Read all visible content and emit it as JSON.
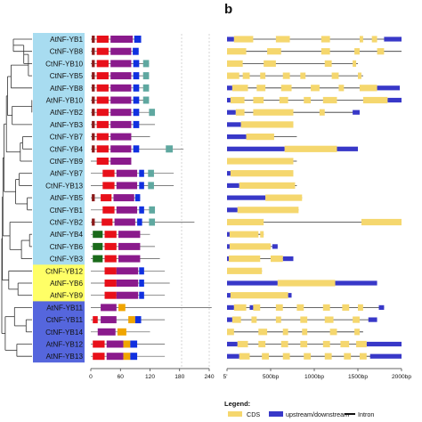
{
  "panel_label": "b",
  "colors": {
    "group1_bg": "#a8dcf0",
    "group2_bg": "#ffff66",
    "group3_bg": "#5566dd",
    "motif_darkred": "#8b1a1a",
    "motif_red": "#e8101a",
    "motif_purple": "#8a1a8c",
    "motif_blue": "#1030e0",
    "motif_teal": "#5fa8a0",
    "motif_green": "#1a6a1a",
    "motif_orange": "#f0a500",
    "cds": "#f5d76e",
    "utr": "#3838c8",
    "intron": "#333333"
  },
  "genes": [
    {
      "name": "AtNF-YB1",
      "group": 1
    },
    {
      "name": "CtNF-YB8",
      "group": 1
    },
    {
      "name": "CtNF-YB10",
      "group": 1
    },
    {
      "name": "CtNF-YB5",
      "group": 1
    },
    {
      "name": "AtNF-YB8",
      "group": 1
    },
    {
      "name": "AtNF-YB10",
      "group": 1
    },
    {
      "name": "AtNF-YB2",
      "group": 1
    },
    {
      "name": "AtNF-YB3",
      "group": 1
    },
    {
      "name": "CtNF-YB7",
      "group": 1
    },
    {
      "name": "CtNF-YB4",
      "group": 1
    },
    {
      "name": "CtNF-YB9",
      "group": 1
    },
    {
      "name": "AtNF-YB7",
      "group": 1
    },
    {
      "name": "CtNF-YB13",
      "group": 1
    },
    {
      "name": "AtNF-YB5",
      "group": 1
    },
    {
      "name": "CtNF-YB1",
      "group": 1
    },
    {
      "name": "CtNF-YB2",
      "group": 1
    },
    {
      "name": "AtNF-YB4",
      "group": 1
    },
    {
      "name": "CtNF-YB6",
      "group": 1
    },
    {
      "name": "CtNF-YB3",
      "group": 1
    },
    {
      "name": "CtNF-YB12",
      "group": 2
    },
    {
      "name": "AtNF-YB6",
      "group": 2
    },
    {
      "name": "AtNF-YB9",
      "group": 2
    },
    {
      "name": "AtNF-YB11",
      "group": 3
    },
    {
      "name": "CtNF-YB11",
      "group": 3
    },
    {
      "name": "CtNF-YB14",
      "group": 3
    },
    {
      "name": "AtNF-YB12",
      "group": 3
    },
    {
      "name": "AtNF-YB13",
      "group": 3
    }
  ],
  "motif_axis": {
    "ticks": [
      "0",
      "60",
      "120",
      "180",
      "240"
    ],
    "max": 240
  },
  "structure_axis": {
    "ticks": [
      "5'",
      "500bp",
      "1000bp",
      "1500bp",
      "2000bp"
    ],
    "max": 2000
  },
  "legend": {
    "title": "Legend:",
    "cds": "CDS",
    "utr": "upstream/downstream",
    "intron": "Intron"
  },
  "motifs": [
    [
      [
        "darkred",
        2,
        8
      ],
      [
        "red",
        12,
        36
      ],
      [
        "purple",
        40,
        85
      ],
      [
        "blue",
        88,
        102
      ]
    ],
    [
      [
        "darkred",
        2,
        8
      ],
      [
        "red",
        12,
        36
      ],
      [
        "purple",
        40,
        82
      ],
      [
        "blue",
        85,
        97
      ]
    ],
    [
      [
        "darkred",
        2,
        8
      ],
      [
        "red",
        12,
        36
      ],
      [
        "purple",
        40,
        82
      ],
      [
        "blue",
        86,
        98
      ],
      [
        "teal",
        106,
        118
      ]
    ],
    [
      [
        "darkred",
        2,
        8
      ],
      [
        "red",
        12,
        36
      ],
      [
        "purple",
        40,
        82
      ],
      [
        "blue",
        86,
        98
      ],
      [
        "teal",
        106,
        118
      ]
    ],
    [
      [
        "darkred",
        2,
        8
      ],
      [
        "red",
        12,
        36
      ],
      [
        "purple",
        40,
        82
      ],
      [
        "blue",
        86,
        98
      ],
      [
        "teal",
        106,
        118
      ]
    ],
    [
      [
        "darkred",
        2,
        8
      ],
      [
        "red",
        12,
        36
      ],
      [
        "purple",
        40,
        82
      ],
      [
        "blue",
        86,
        98
      ],
      [
        "teal",
        106,
        118
      ]
    ],
    [
      [
        "darkred",
        2,
        8
      ],
      [
        "red",
        12,
        36
      ],
      [
        "purple",
        40,
        82
      ],
      [
        "blue",
        86,
        98
      ],
      [
        "teal",
        118,
        130
      ]
    ],
    [
      [
        "darkred",
        2,
        8
      ],
      [
        "red",
        12,
        36
      ],
      [
        "purple",
        40,
        82
      ],
      [
        "blue",
        86,
        98
      ]
    ],
    [
      [
        "darkred",
        2,
        8
      ],
      [
        "red",
        12,
        36
      ],
      [
        "purple",
        40,
        82
      ]
    ],
    [
      [
        "darkred",
        2,
        8
      ],
      [
        "red",
        12,
        36
      ],
      [
        "purple",
        40,
        82
      ],
      [
        "blue",
        86,
        98
      ],
      [
        "teal",
        152,
        166
      ]
    ],
    [
      [
        "red",
        12,
        36
      ],
      [
        "purple",
        40,
        82
      ]
    ],
    [
      [
        "red",
        24,
        48
      ],
      [
        "purple",
        52,
        94
      ],
      [
        "blue",
        98,
        108
      ],
      [
        "teal",
        116,
        128
      ]
    ],
    [
      [
        "red",
        24,
        48
      ],
      [
        "purple",
        52,
        94
      ],
      [
        "blue",
        98,
        108
      ],
      [
        "teal",
        116,
        128
      ]
    ],
    [
      [
        "darkred",
        2,
        8
      ],
      [
        "red",
        20,
        42
      ],
      [
        "purple",
        46,
        88
      ],
      [
        "blue",
        90,
        100
      ]
    ],
    [
      [
        "red",
        24,
        48
      ],
      [
        "purple",
        52,
        94
      ],
      [
        "blue",
        98,
        108
      ],
      [
        "teal",
        118,
        130
      ]
    ],
    [
      [
        "darkred",
        2,
        8
      ],
      [
        "red",
        22,
        44
      ],
      [
        "purple",
        48,
        90
      ],
      [
        "blue",
        94,
        104
      ],
      [
        "teal",
        118,
        130
      ]
    ],
    [
      [
        "green",
        4,
        24
      ],
      [
        "red",
        28,
        52
      ],
      [
        "purple",
        56,
        100
      ]
    ],
    [
      [
        "green",
        4,
        24
      ],
      [
        "red",
        28,
        52
      ],
      [
        "purple",
        56,
        100
      ]
    ],
    [
      [
        "green",
        4,
        24
      ],
      [
        "red",
        28,
        52
      ],
      [
        "purple",
        56,
        100
      ]
    ],
    [
      [
        "red",
        28,
        52
      ],
      [
        "purple",
        52,
        96
      ],
      [
        "blue",
        98,
        108
      ]
    ],
    [
      [
        "red",
        28,
        52
      ],
      [
        "purple",
        52,
        96
      ],
      [
        "blue",
        98,
        108
      ]
    ],
    [
      [
        "red",
        28,
        52
      ],
      [
        "purple",
        52,
        96
      ],
      [
        "blue",
        98,
        108
      ]
    ],
    [
      [
        "purple",
        20,
        52
      ],
      [
        "orange",
        56,
        70
      ]
    ],
    [
      [
        "red",
        4,
        14
      ],
      [
        "purple",
        20,
        52
      ],
      [
        "orange",
        76,
        90
      ],
      [
        "blue",
        90,
        102
      ]
    ],
    [
      [
        "purple",
        14,
        50
      ],
      [
        "orange",
        54,
        72
      ]
    ],
    [
      [
        "red",
        4,
        28
      ],
      [
        "purple",
        32,
        66
      ],
      [
        "orange",
        66,
        80
      ],
      [
        "blue",
        80,
        94
      ]
    ],
    [
      [
        "red",
        4,
        28
      ],
      [
        "purple",
        32,
        66
      ],
      [
        "orange",
        66,
        80
      ],
      [
        "blue",
        80,
        94
      ]
    ]
  ],
  "motif_lines": [
    102,
    97,
    118,
    118,
    118,
    118,
    130,
    130,
    120,
    188,
    82,
    168,
    168,
    100,
    130,
    210,
    120,
    130,
    140,
    150,
    160,
    150,
    245,
    150,
    120,
    150,
    150
  ],
  "structures": [
    {
      "len": 2000,
      "utr": [
        [
          0,
          80
        ],
        [
          1800,
          2000
        ]
      ],
      "cds": [
        [
          80,
          300
        ],
        [
          560,
          720
        ],
        [
          1080,
          1180
        ],
        [
          1520,
          1560
        ],
        [
          1660,
          1720
        ]
      ]
    },
    {
      "len": 2000,
      "utr": [],
      "cds": [
        [
          0,
          220
        ],
        [
          460,
          620
        ],
        [
          1080,
          1180
        ],
        [
          1460,
          1520
        ],
        [
          1720,
          1800
        ]
      ]
    },
    {
      "len": 1500,
      "utr": [],
      "cds": [
        [
          0,
          180
        ],
        [
          420,
          560
        ],
        [
          1120,
          1200
        ],
        [
          1440,
          1480
        ]
      ]
    },
    {
      "len": 1560,
      "utr": [],
      "cds": [
        [
          0,
          140
        ],
        [
          180,
          260
        ],
        [
          380,
          440
        ],
        [
          640,
          720
        ],
        [
          840,
          900
        ],
        [
          1200,
          1280
        ],
        [
          1500,
          1540
        ]
      ]
    },
    {
      "len": 1980,
      "utr": [
        [
          0,
          60
        ],
        [
          1720,
          1980
        ]
      ],
      "cds": [
        [
          60,
          240
        ],
        [
          340,
          440
        ],
        [
          620,
          740
        ],
        [
          960,
          1060
        ],
        [
          1280,
          1340
        ],
        [
          1520,
          1720
        ]
      ]
    },
    {
      "len": 2000,
      "utr": [
        [
          0,
          40
        ],
        [
          1840,
          2000
        ]
      ],
      "cds": [
        [
          40,
          200
        ],
        [
          300,
          420
        ],
        [
          600,
          700
        ],
        [
          880,
          960
        ],
        [
          1100,
          1260
        ],
        [
          1560,
          1840
        ]
      ]
    },
    {
      "len": 1520,
      "utr": [
        [
          0,
          100
        ],
        [
          1440,
          1520
        ]
      ],
      "cds": [
        [
          100,
          200
        ],
        [
          300,
          760
        ],
        [
          1060,
          1120
        ]
      ]
    },
    {
      "len": 760,
      "utr": [
        [
          0,
          160
        ]
      ],
      "cds": [
        [
          160,
          760
        ]
      ]
    },
    {
      "len": 800,
      "utr": [
        [
          0,
          220
        ]
      ],
      "cds": [
        [
          220,
          540
        ]
      ]
    },
    {
      "len": 1500,
      "utr": [
        [
          0,
          660
        ],
        [
          1260,
          1500
        ]
      ],
      "cds": [
        [
          660,
          1260
        ]
      ]
    },
    {
      "len": 800,
      "utr": [],
      "cds": [
        [
          0,
          760
        ]
      ]
    },
    {
      "len": 760,
      "utr": [
        [
          0,
          40
        ]
      ],
      "cds": [
        [
          40,
          760
        ]
      ]
    },
    {
      "len": 800,
      "utr": [
        [
          0,
          140
        ]
      ],
      "cds": [
        [
          140,
          780
        ]
      ]
    },
    {
      "len": 860,
      "utr": [
        [
          0,
          440
        ]
      ],
      "cds": [
        [
          440,
          860
        ]
      ]
    },
    {
      "len": 820,
      "utr": [
        [
          0,
          120
        ]
      ],
      "cds": [
        [
          120,
          820
        ]
      ]
    },
    {
      "len": 2000,
      "utr": [],
      "cds": [
        [
          0,
          420
        ],
        [
          1540,
          2000
        ]
      ]
    },
    {
      "len": 420,
      "utr": [
        [
          0,
          30
        ]
      ],
      "cds": [
        [
          30,
          360
        ],
        [
          380,
          420
        ]
      ]
    },
    {
      "len": 580,
      "utr": [
        [
          0,
          30
        ],
        [
          520,
          580
        ]
      ],
      "cds": [
        [
          30,
          500
        ]
      ]
    },
    {
      "len": 760,
      "utr": [
        [
          0,
          20
        ],
        [
          640,
          760
        ]
      ],
      "cds": [
        [
          20,
          380
        ],
        [
          500,
          640
        ]
      ]
    },
    {
      "len": 400,
      "utr": [],
      "cds": [
        [
          0,
          400
        ]
      ]
    },
    {
      "len": 1720,
      "utr": [
        [
          0,
          580
        ],
        [
          1240,
          1720
        ]
      ],
      "cds": [
        [
          580,
          1240
        ]
      ]
    },
    {
      "len": 740,
      "utr": [
        [
          0,
          40
        ],
        [
          700,
          740
        ]
      ],
      "cds": [
        [
          40,
          700
        ]
      ]
    },
    {
      "len": 1800,
      "utr": [
        [
          0,
          80
        ],
        [
          260,
          300
        ],
        [
          1740,
          1800
        ]
      ],
      "cds": [
        [
          80,
          220
        ],
        [
          300,
          380
        ],
        [
          560,
          640
        ],
        [
          800,
          880
        ],
        [
          1100,
          1180
        ],
        [
          1320,
          1400
        ],
        [
          1500,
          1560
        ]
      ]
    },
    {
      "len": 1720,
      "utr": [
        [
          0,
          60
        ],
        [
          1620,
          1720
        ]
      ],
      "cds": [
        [
          60,
          160
        ],
        [
          280,
          340
        ],
        [
          560,
          620
        ],
        [
          840,
          920
        ],
        [
          1120,
          1220
        ],
        [
          1440,
          1520
        ]
      ]
    },
    {
      "len": 1560,
      "utr": [],
      "cds": [
        [
          0,
          80
        ],
        [
          360,
          460
        ],
        [
          640,
          700
        ],
        [
          860,
          920
        ],
        [
          1180,
          1260
        ],
        [
          1460,
          1520
        ]
      ]
    },
    {
      "len": 2000,
      "utr": [
        [
          0,
          120
        ],
        [
          1600,
          2000
        ]
      ],
      "cds": [
        [
          120,
          240
        ],
        [
          360,
          440
        ],
        [
          620,
          700
        ],
        [
          840,
          920
        ],
        [
          1100,
          1180
        ],
        [
          1300,
          1400
        ],
        [
          1480,
          1600
        ]
      ]
    },
    {
      "len": 2000,
      "utr": [
        [
          0,
          140
        ],
        [
          1640,
          2000
        ]
      ],
      "cds": [
        [
          140,
          260
        ],
        [
          400,
          480
        ],
        [
          640,
          720
        ],
        [
          880,
          960
        ],
        [
          1120,
          1200
        ],
        [
          1340,
          1420
        ],
        [
          1520,
          1600
        ]
      ]
    }
  ],
  "tree": {
    "nodes": [
      [
        10,
        [
          0,
          1
        ]
      ],
      [
        19,
        [
          27,
          2
        ]
      ],
      [
        23,
        [
          28,
          3
        ]
      ],
      [
        8,
        [
          29,
          4
        ]
      ],
      [
        26,
        [
          5,
          6
        ]
      ],
      [
        9,
        [
          31,
          7
        ]
      ],
      [
        5,
        [
          30,
          32
        ]
      ],
      [
        18,
        [
          8,
          9
        ]
      ],
      [
        16,
        [
          34,
          10
        ]
      ],
      [
        4,
        [
          33,
          35
        ]
      ],
      [
        15,
        [
          11,
          12
        ]
      ],
      [
        22,
        [
          13,
          14
        ]
      ],
      [
        12,
        [
          37,
          38
        ]
      ],
      [
        2,
        [
          36,
          39
        ]
      ],
      [
        24,
        [
          16,
          17
        ]
      ],
      [
        17,
        [
          41,
          18
        ]
      ],
      [
        7,
        [
          42,
          15
        ]
      ],
      [
        1,
        [
          40,
          43
        ]
      ],
      [
        14,
        [
          20,
          21
        ]
      ],
      [
        6,
        [
          45,
          19
        ]
      ],
      [
        21,
        [
          23,
          24
        ]
      ],
      [
        11,
        [
          47,
          22
        ]
      ],
      [
        13,
        [
          25,
          26
        ]
      ],
      [
        3,
        [
          48,
          49
        ]
      ],
      [
        0.5,
        [
          44,
          46
        ]
      ],
      [
        0,
        [
          51,
          50
        ]
      ]
    ]
  }
}
